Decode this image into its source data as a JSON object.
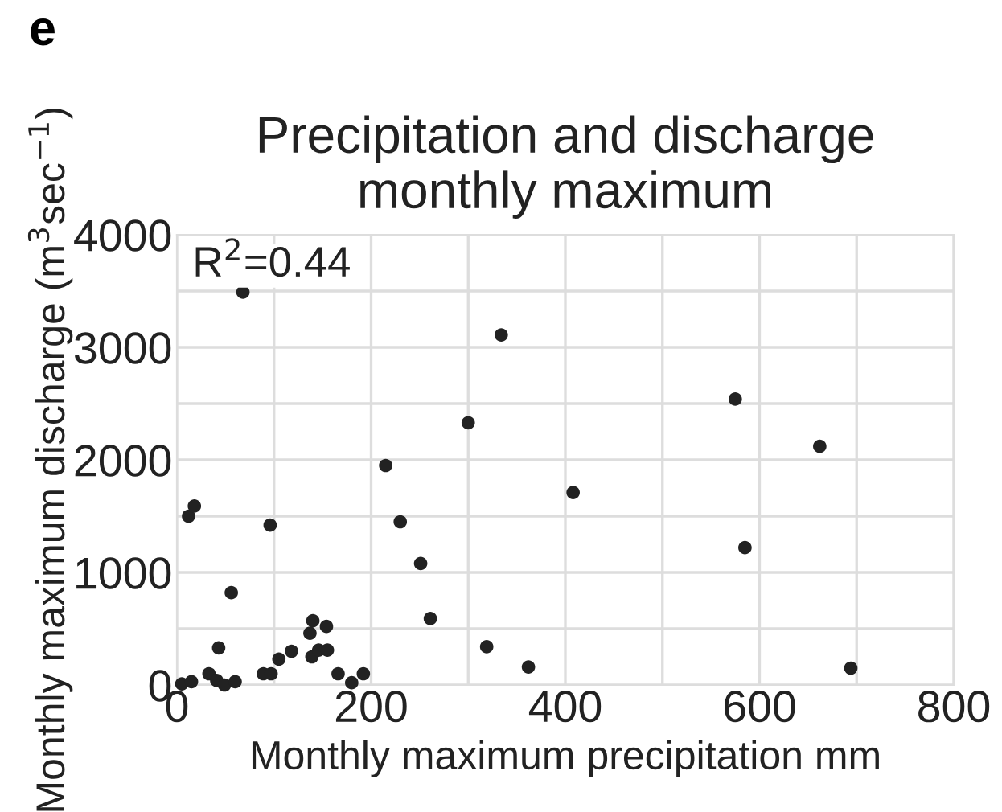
{
  "chart_data": {
    "type": "scatter",
    "title": "Precipitation and discharge\nmonthly maximum",
    "xlabel": "Monthly maximum precipitation mm",
    "ylabel": "Monthly maximum discharge (m$^{3}$sec$^{−1}$)",
    "annotations": [
      "e",
      "R$^{2}$=0.44"
    ],
    "x": [
      5,
      15,
      12,
      18,
      96,
      56,
      43,
      33,
      41,
      49,
      60,
      89,
      97,
      105,
      118,
      137,
      140,
      154,
      139,
      146,
      155,
      166,
      180,
      192,
      215,
      230,
      251,
      261,
      300,
      319,
      362,
      334,
      575,
      662,
      408,
      585,
      694,
      68
    ],
    "values": [
      10,
      30,
      1500,
      1590,
      1420,
      820,
      330,
      100,
      40,
      0,
      30,
      100,
      100,
      230,
      300,
      460,
      570,
      520,
      250,
      310,
      310,
      100,
      20,
      100,
      1950,
      1450,
      1080,
      590,
      2330,
      340,
      160,
      3110,
      2540,
      2120,
      1710,
      1220,
      150,
      3490
    ],
    "color": "#222222",
    "marker": "circle",
    "grid": true,
    "xlim": [
      0,
      800
    ],
    "ylim": [
      0,
      4000
    ],
    "xticks": [
      0,
      {
        "value": 100,
        "label": null
      },
      200,
      {
        "value": 300,
        "label": null
      },
      400,
      {
        "value": 500,
        "label": null
      },
      600,
      {
        "value": 700,
        "label": null
      },
      800
    ],
    "yticks": [
      0,
      {
        "value": 500,
        "label": null
      },
      1000,
      {
        "value": 1500,
        "label": null
      },
      2000,
      {
        "value": 2500,
        "label": null
      },
      3000,
      {
        "value": 3500,
        "label": null
      },
      4000
    ]
  }
}
